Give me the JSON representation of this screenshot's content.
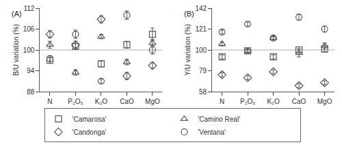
{
  "chart_data": [
    {
      "type": "scatter",
      "title": "(A)",
      "y_label": "B/U variation (%)",
      "categories": [
        "N",
        "P₂O₅",
        "K₂O",
        "CaO",
        "MgO"
      ],
      "ylim": [
        88,
        112
      ],
      "yticks": [
        88,
        94,
        100,
        106,
        112
      ],
      "grid": false,
      "hline": 100,
      "legend": "bottom",
      "series": [
        {
          "name": "'Camarosa'",
          "color": "#555555",
          "marker": "square",
          "values": [
            97,
            101,
            96,
            101.5,
            104.5
          ],
          "errors": [
            0.8,
            0.8,
            0.8,
            1,
            1.8
          ]
        },
        {
          "name": "'Camino Real'",
          "color": "#555555",
          "marker": "triangle-up",
          "values": [
            101.5,
            93.5,
            103.8,
            96.5,
            102
          ],
          "errors": [
            1,
            0.8,
            0.6,
            0.8,
            1
          ]
        },
        {
          "name": "'Candonga'",
          "color": "#555555",
          "marker": "diamond",
          "values": [
            104.5,
            101.5,
            108.8,
            92.5,
            95.5
          ],
          "errors": [
            1,
            1,
            1,
            1,
            0.8
          ]
        },
        {
          "name": "'Ventana'",
          "color": "#555555",
          "marker": "circle",
          "values": [
            97.5,
            104.5,
            91,
            110,
            100
          ],
          "errors": [
            0.8,
            1.2,
            0.6,
            1.2,
            1.2
          ]
        }
      ]
    },
    {
      "type": "scatter",
      "title": "(B)",
      "y_label": "Y/U variation (%)",
      "categories": [
        "N",
        "P₂O₅",
        "K₂O",
        "CaO",
        "MgO"
      ],
      "ylim": [
        58,
        142
      ],
      "yticks": [
        58,
        79,
        100,
        121,
        142
      ],
      "grid": false,
      "hline": 100,
      "series": [
        {
          "name": "'Camarosa'",
          "color": "#555555",
          "marker": "square",
          "values": [
            93,
            99,
            93,
            100,
            101
          ],
          "errors": [
            2,
            2,
            2,
            3,
            3
          ]
        },
        {
          "name": "'Camino Real'",
          "color": "#555555",
          "marker": "triangle-up",
          "values": [
            106,
            99,
            112,
            97,
            104
          ],
          "errors": [
            2,
            2,
            2,
            4,
            3
          ]
        },
        {
          "name": "'Candonga'",
          "color": "#555555",
          "marker": "diamond",
          "values": [
            75,
            72,
            78,
            64,
            67
          ],
          "errors": [
            2,
            2,
            2,
            2,
            2
          ]
        },
        {
          "name": "'Ventana'",
          "color": "#555555",
          "marker": "circle",
          "values": [
            118,
            126,
            112,
            133,
            121
          ],
          "errors": [
            2,
            2,
            2,
            3,
            3
          ]
        }
      ]
    }
  ]
}
